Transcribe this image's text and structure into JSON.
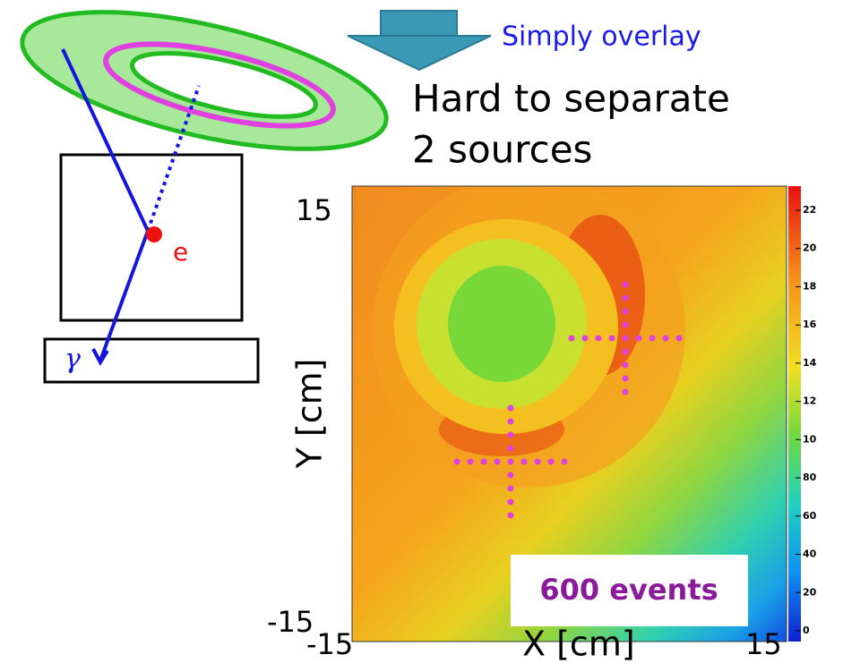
{
  "header": {
    "arrow_label": "Simply overlay",
    "line1": "Hard to separate",
    "line2": "2 sources"
  },
  "diagram": {
    "electron": "e",
    "gamma": "γ"
  },
  "plot": {
    "y_top": "15",
    "y_bottom": "-15",
    "x_left": "-15",
    "x_right": "15",
    "x_label": "X [cm]",
    "y_label": "Y [cm]",
    "annotation": "600 events",
    "colorbar_labels": [
      "22",
      "20",
      "18",
      "16",
      "14",
      "12",
      "10",
      "80",
      "60",
      "40",
      "20",
      "0"
    ]
  }
}
